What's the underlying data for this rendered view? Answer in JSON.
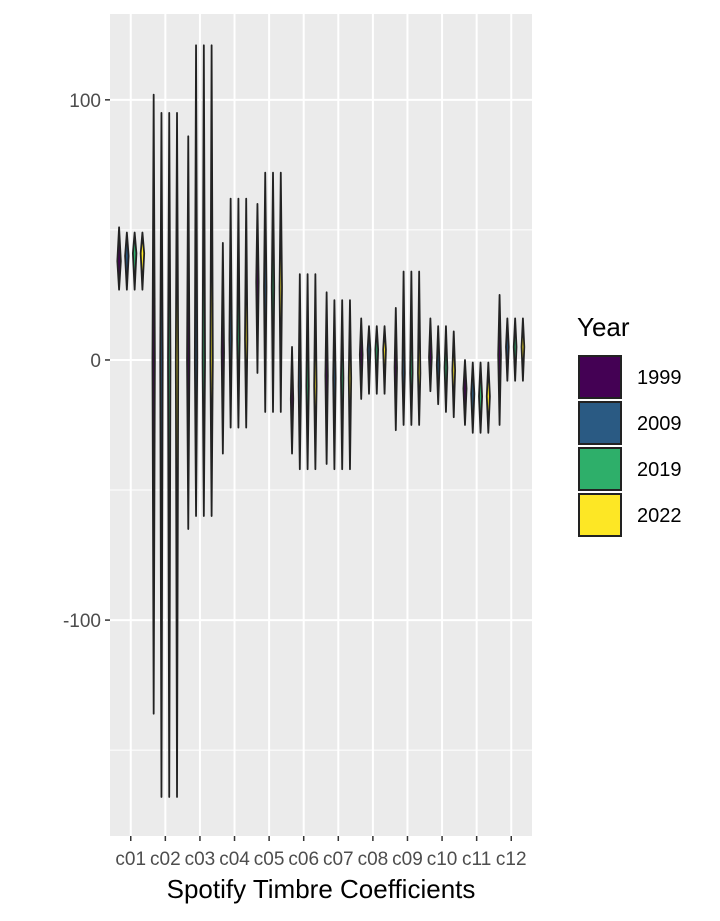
{
  "chart_data": {
    "type": "violin",
    "xlabel": "Spotify Timbre Coefficients",
    "ylabel": "",
    "ylim": [
      -183,
      133
    ],
    "yticks": [
      -100,
      0,
      100
    ],
    "ytick_labels": [
      "-100",
      "0",
      "100"
    ],
    "categories": [
      "c01",
      "c02",
      "c03",
      "c04",
      "c05",
      "c06",
      "c07",
      "c08",
      "c09",
      "c10",
      "c11",
      "c12"
    ],
    "grid": true,
    "legend": {
      "title": "Year",
      "position": "right",
      "entries": [
        {
          "label": "1999",
          "color": "#440154"
        },
        {
          "label": "2009",
          "color": "#2A5A83"
        },
        {
          "label": "2019",
          "color": "#2EAF6A"
        },
        {
          "label": "2022",
          "color": "#FDE725"
        }
      ]
    },
    "series": [
      {
        "name": "1999",
        "color": "#440154",
        "values": [
          {
            "min": 27,
            "max": 51,
            "center": 38,
            "width": 0.45
          },
          {
            "min": -136,
            "max": 102,
            "center": 0,
            "width": 0.05
          },
          {
            "min": -65,
            "max": 86,
            "center": 0,
            "width": 0.05
          },
          {
            "min": -36,
            "max": 45,
            "center": 3,
            "width": 0.05
          },
          {
            "min": -5,
            "max": 60,
            "center": 30,
            "width": 0.06
          },
          {
            "min": -36,
            "max": 5,
            "center": -15,
            "width": 0.12
          },
          {
            "min": -40,
            "max": 26,
            "center": -6,
            "width": 0.06
          },
          {
            "min": -15,
            "max": 16,
            "center": 2,
            "width": 0.35
          },
          {
            "min": -27,
            "max": 20,
            "center": -3,
            "width": 0.1
          },
          {
            "min": -12,
            "max": 16,
            "center": 1,
            "width": 0.35
          },
          {
            "min": -25,
            "max": 0,
            "center": -11,
            "width": 0.4
          },
          {
            "min": -25,
            "max": 25,
            "center": 2,
            "width": 0.35
          }
        ]
      },
      {
        "name": "2009",
        "color": "#2A5A83",
        "values": [
          {
            "min": 27,
            "max": 49,
            "center": 40,
            "width": 0.45
          },
          {
            "min": -168,
            "max": 95,
            "center": 0,
            "width": 0.05
          },
          {
            "min": -60,
            "max": 121,
            "center": 0,
            "width": 0.05
          },
          {
            "min": -26,
            "max": 62,
            "center": 8,
            "width": 0.05
          },
          {
            "min": -20,
            "max": 72,
            "center": 28,
            "width": 0.06
          },
          {
            "min": -42,
            "max": 33,
            "center": -10,
            "width": 0.06
          },
          {
            "min": -42,
            "max": 23,
            "center": -7,
            "width": 0.06
          },
          {
            "min": -13,
            "max": 13,
            "center": 4,
            "width": 0.35
          },
          {
            "min": -25,
            "max": 34,
            "center": -5,
            "width": 0.3
          },
          {
            "min": -17,
            "max": 13,
            "center": -2,
            "width": 0.35
          },
          {
            "min": -28,
            "max": -1,
            "center": -13,
            "width": 0.4
          },
          {
            "min": -8,
            "max": 16,
            "center": 5,
            "width": 0.35
          }
        ]
      },
      {
        "name": "2019",
        "color": "#2EAF6A",
        "values": [
          {
            "min": 27,
            "max": 49,
            "center": 41,
            "width": 0.45
          },
          {
            "min": -168,
            "max": 95,
            "center": 0,
            "width": 0.05
          },
          {
            "min": -60,
            "max": 121,
            "center": 0,
            "width": 0.05
          },
          {
            "min": -26,
            "max": 62,
            "center": 8,
            "width": 0.05
          },
          {
            "min": -20,
            "max": 72,
            "center": 28,
            "width": 0.06
          },
          {
            "min": -42,
            "max": 33,
            "center": -10,
            "width": 0.06
          },
          {
            "min": -42,
            "max": 23,
            "center": -7,
            "width": 0.06
          },
          {
            "min": -13,
            "max": 13,
            "center": 4,
            "width": 0.35
          },
          {
            "min": -25,
            "max": 34,
            "center": -5,
            "width": 0.3
          },
          {
            "min": -20,
            "max": 13,
            "center": -3,
            "width": 0.35
          },
          {
            "min": -28,
            "max": -1,
            "center": -14,
            "width": 0.4
          },
          {
            "min": -8,
            "max": 16,
            "center": 5,
            "width": 0.35
          }
        ]
      },
      {
        "name": "2022",
        "color": "#FDE725",
        "values": [
          {
            "min": 27,
            "max": 49,
            "center": 41,
            "width": 0.45
          },
          {
            "min": -168,
            "max": 95,
            "center": 0,
            "width": 0.05
          },
          {
            "min": -60,
            "max": 121,
            "center": 0,
            "width": 0.05
          },
          {
            "min": -26,
            "max": 62,
            "center": 8,
            "width": 0.05
          },
          {
            "min": -20,
            "max": 72,
            "center": 28,
            "width": 0.06
          },
          {
            "min": -42,
            "max": 33,
            "center": -10,
            "width": 0.06
          },
          {
            "min": -42,
            "max": 23,
            "center": -7,
            "width": 0.06
          },
          {
            "min": -13,
            "max": 13,
            "center": 4,
            "width": 0.35
          },
          {
            "min": -25,
            "max": 34,
            "center": -5,
            "width": 0.3
          },
          {
            "min": -22,
            "max": 11,
            "center": -4,
            "width": 0.35
          },
          {
            "min": -28,
            "max": -1,
            "center": -14,
            "width": 0.4
          },
          {
            "min": -8,
            "max": 16,
            "center": 5,
            "width": 0.35
          }
        ]
      }
    ]
  }
}
